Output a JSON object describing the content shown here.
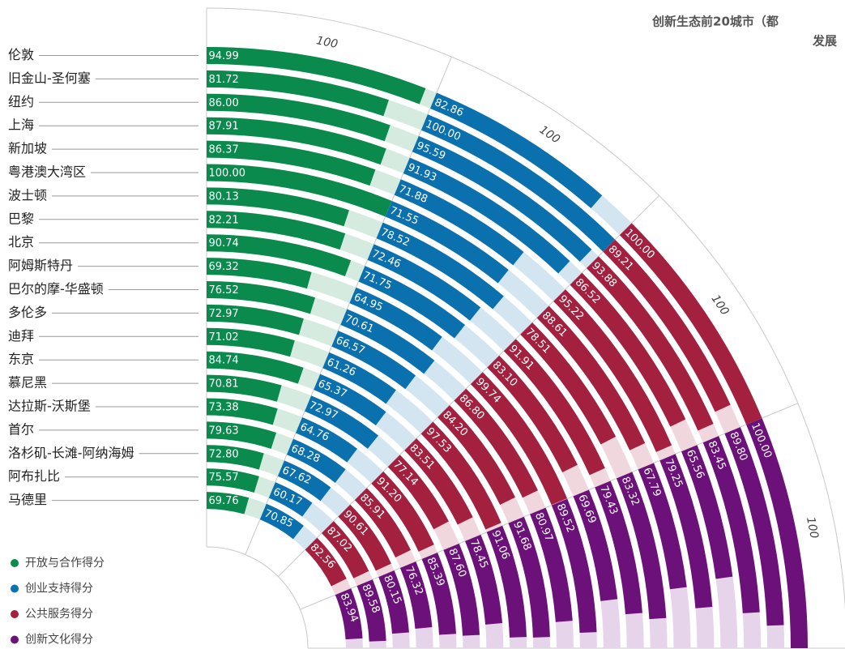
{
  "chart_data": {
    "type": "radial_bar",
    "title": "创新生态前20城市（都",
    "subtitle": "发展",
    "categories": [
      "伦敦",
      "旧金山-圣何塞",
      "纽约",
      "上海",
      "新加坡",
      "粤港澳大湾区",
      "波士顿",
      "巴黎",
      "北京",
      "阿姆斯特丹",
      "巴尔的摩-华盛顿",
      "多伦多",
      "迪拜",
      "东京",
      "慕尼黑",
      "达拉斯-沃斯堡",
      "首尔",
      "洛杉矶-长滩-阿纳海姆",
      "阿布扎比",
      "马德里"
    ],
    "max_labels": [
      100,
      100,
      100,
      100
    ],
    "series": [
      {
        "name": "开放与合作得分",
        "color": "#0b8a4d",
        "track_color": "#d5ebdf",
        "values": [
          94.99,
          81.72,
          86,
          87.91,
          86.37,
          100,
          80.13,
          82.21,
          90.74,
          69.32,
          76.52,
          72.97,
          71.02,
          84.74,
          70.81,
          73.38,
          79.63,
          72.8,
          75.57,
          69.76
        ],
        "value_labels": [
          "94.99",
          "81.72",
          "86.00",
          "87.91",
          "86.37",
          "100.00",
          "80.13",
          "82.21",
          "90.74",
          "69.32",
          "76.52",
          "72.97",
          "71.02",
          "84.74",
          "70.81",
          "73.38",
          "79.63",
          "72.80",
          "75.57",
          "69.76"
        ]
      },
      {
        "name": "创业支持得分",
        "color": "#0a70ae",
        "track_color": "#d3e5f1",
        "values": [
          82.86,
          100,
          95.59,
          91.93,
          71.88,
          71.55,
          78.52,
          72.46,
          71.75,
          64.95,
          70.61,
          66.57,
          61.26,
          65.37,
          72.97,
          64.76,
          68.28,
          67.62,
          60.17,
          70.85
        ],
        "value_labels": [
          "82.86",
          "100.00",
          "95.59",
          "91.93",
          "71.88",
          "71.55",
          "78.52",
          "72.46",
          "71.75",
          "64.95",
          "70.61",
          "66.57",
          "61.26",
          "65.37",
          "72.97",
          "64.76",
          "68.28",
          "67.62",
          "60.17",
          "70.85"
        ]
      },
      {
        "name": "公共服务得分",
        "color": "#a3203f",
        "track_color": "#f0d7dd",
        "values": [
          100,
          89.21,
          93.88,
          86.52,
          95.22,
          88.61,
          78.51,
          91.91,
          83.1,
          99.74,
          86.8,
          84.2,
          97.53,
          83.51,
          77.14,
          91.2,
          85.91,
          90.61,
          87.02,
          82.56
        ],
        "value_labels": [
          "100.00",
          "89.21",
          "93.88",
          "86.52",
          "95.22",
          "88.61",
          "78.51",
          "91.91",
          "83.10",
          "99.74",
          "86.80",
          "84.20",
          "97.53",
          "83.51",
          "77.14",
          "91.20",
          "85.91",
          "90.61",
          "87.02",
          "82.56"
        ]
      },
      {
        "name": "创新文化得分",
        "color": "#6b1179",
        "track_color": "#e6d5ea",
        "values": [
          100,
          89.8,
          83.45,
          65.56,
          79.25,
          67.79,
          83.32,
          79.43,
          69.69,
          89.52,
          80.97,
          91.68,
          91.06,
          78.45,
          87.6,
          85.39,
          76.32,
          80.15,
          89.58,
          83.94
        ],
        "value_labels": [
          "100.00",
          "89.80",
          "83.45",
          "65.56",
          "79.25",
          "67.79",
          "83.32",
          "79.43",
          "69.69",
          "89.52",
          "80.97",
          "91.68",
          "91.06",
          "78.45",
          "87.60",
          "85.39",
          "76.32",
          "80.15",
          "89.58",
          "83.94"
        ]
      }
    ]
  }
}
